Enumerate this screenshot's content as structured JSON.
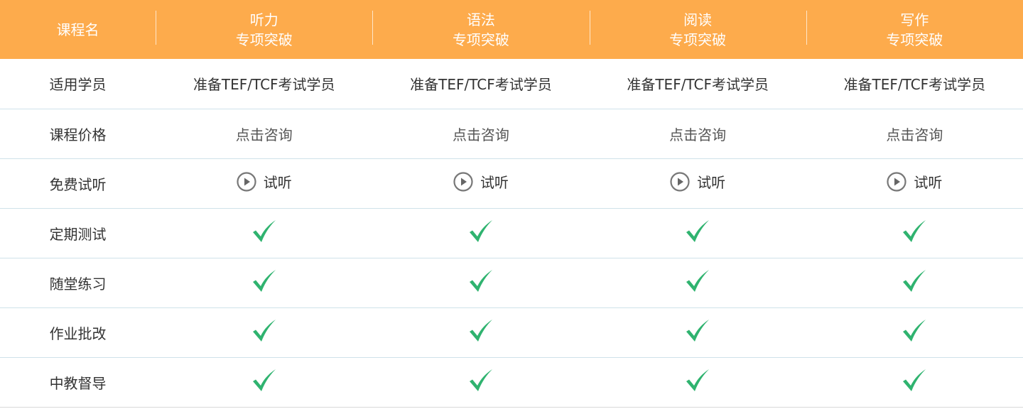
{
  "header": {
    "first": "课程名",
    "courses": [
      {
        "line1": "听力",
        "line2": "专项突破"
      },
      {
        "line1": "语法",
        "line2": "专项突破"
      },
      {
        "line1": "阅读",
        "line2": "专项突破"
      },
      {
        "line1": "写作",
        "line2": "专项突破"
      }
    ]
  },
  "rows": {
    "students": {
      "label": "适用学员",
      "values": [
        "准备TEF/TCF考试学员",
        "准备TEF/TCF考试学员",
        "准备TEF/TCF考试学员",
        "准备TEF/TCF考试学员"
      ]
    },
    "price": {
      "label": "课程价格",
      "values": [
        "点击咨询",
        "点击咨询",
        "点击咨询",
        "点击咨询"
      ]
    },
    "trial": {
      "label": "免费试听",
      "button_label": "试听",
      "icon": "play-circle-icon"
    },
    "checks": [
      {
        "label": "定期测试",
        "included": [
          true,
          true,
          true,
          true
        ]
      },
      {
        "label": "随堂练习",
        "included": [
          true,
          true,
          true,
          true
        ]
      },
      {
        "label": "作业批改",
        "included": [
          true,
          true,
          true,
          true
        ]
      },
      {
        "label": "中教督导",
        "included": [
          true,
          true,
          true,
          true
        ]
      }
    ]
  },
  "colors": {
    "header_bg": "#fdab4c",
    "check": "#2fb36f",
    "row_border": "#cfe2ea"
  }
}
